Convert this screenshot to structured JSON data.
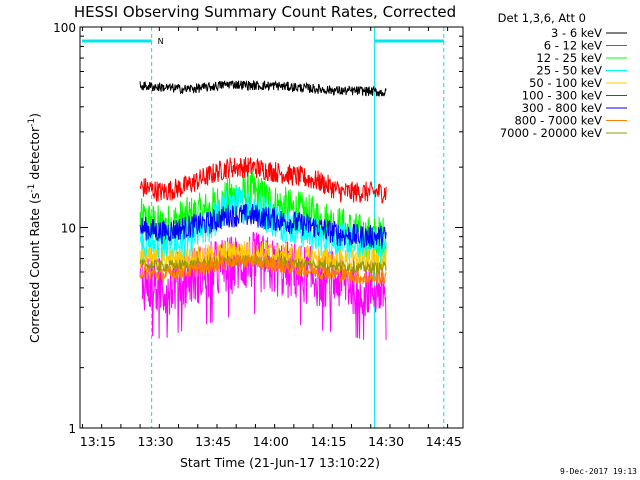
{
  "chart_data": {
    "type": "line",
    "title": "HESSI Observing Summary Count Rates, Corrected",
    "xlabel": "Start Time (21-Jun-17 13:10:22)",
    "ylabel": "Corrected Count Rate (s",
    "ylabel_sup1": "-1",
    "ylabel_mid": " detector",
    "ylabel_sup2": "-1",
    "ylabel_end": ")",
    "y_scale": "log",
    "ylim": [
      1,
      100
    ],
    "y_ticks": [
      "1",
      "10",
      "100"
    ],
    "xlim": [
      "13:10:22",
      "14:50:00"
    ],
    "x_ticks": [
      "13:15",
      "13:30",
      "13:45",
      "14:00",
      "14:15",
      "14:30",
      "14:45"
    ],
    "grid": false,
    "legend_title": "Det 1,3,6, Att 0",
    "legend_position": "right",
    "date_stamp": "9-Dec-2017 19:13",
    "series": [
      {
        "name": "3 - 6 keV",
        "color": "#000000",
        "x_range": [
          "13:26:00",
          "14:30:00"
        ],
        "values": [
          51,
          50,
          49,
          50,
          52,
          51,
          51,
          50,
          49,
          48,
          48,
          47
        ]
      },
      {
        "name": "6 - 12 keV",
        "color": "#ff00ff",
        "x_range": [
          "13:26:00",
          "14:30:00"
        ],
        "values": [
          5.5,
          5.0,
          5.6,
          6.0,
          6.5,
          6.8,
          6.3,
          6.0,
          5.6,
          5.4,
          5.0,
          5.0
        ]
      },
      {
        "name": "12 - 25 keV",
        "color": "#00ff00",
        "x_range": [
          "13:26:00",
          "14:30:00"
        ],
        "values": [
          11,
          10,
          11,
          12,
          14,
          15,
          13,
          12,
          11,
          10,
          9,
          9
        ]
      },
      {
        "name": "25 - 50 keV",
        "color": "#00ffff",
        "x_range": [
          "13:26:00",
          "14:30:00"
        ],
        "values": [
          8.5,
          8.0,
          8.5,
          10,
          13,
          13,
          11,
          10,
          9,
          8.5,
          8,
          8
        ]
      },
      {
        "name": "50 - 100 keV",
        "color": "#ffcc00",
        "x_range": [
          "13:26:00",
          "14:30:00"
        ],
        "values": [
          7.0,
          6.8,
          7.0,
          7.2,
          7.5,
          7.6,
          7.4,
          7.2,
          7.0,
          6.8,
          6.8,
          6.8
        ]
      },
      {
        "name": "100 - 300 keV",
        "color": "#ff0000",
        "x_range": [
          "13:26:00",
          "14:30:00"
        ],
        "values": [
          16,
          15,
          16,
          18,
          20,
          20,
          19,
          18,
          17,
          15,
          15,
          15
        ]
      },
      {
        "name": "300 - 800 keV",
        "color": "#0000ff",
        "x_range": [
          "13:26:00",
          "14:30:00"
        ],
        "values": [
          10,
          9.5,
          10,
          10.5,
          11.5,
          11.5,
          11,
          10.5,
          10,
          9.2,
          9,
          9
        ]
      },
      {
        "name": "800 - 7000 keV",
        "color": "#ff8000",
        "x_range": [
          "13:26:00",
          "14:30:00"
        ],
        "values": [
          6.0,
          5.8,
          6.0,
          6.3,
          6.8,
          6.8,
          6.5,
          6.2,
          6.0,
          5.8,
          5.6,
          5.6
        ]
      },
      {
        "name": "7000 - 20000 keV",
        "color": "#999900",
        "x_range": [
          "13:26:00",
          "14:30:00"
        ],
        "values": [
          6.5,
          6.4,
          6.5,
          6.6,
          6.8,
          6.8,
          6.7,
          6.6,
          6.5,
          6.4,
          6.3,
          6.3
        ]
      }
    ],
    "annotations": {
      "night_label": "N",
      "night_bars": [
        [
          "13:10:22",
          "13:29:00"
        ],
        [
          "14:27:00",
          "14:45:00"
        ]
      ],
      "solid_vlines": [
        "13:10:22",
        "14:27:00"
      ],
      "dashed_vlines": [
        "13:29:00",
        "14:45:00"
      ]
    }
  }
}
